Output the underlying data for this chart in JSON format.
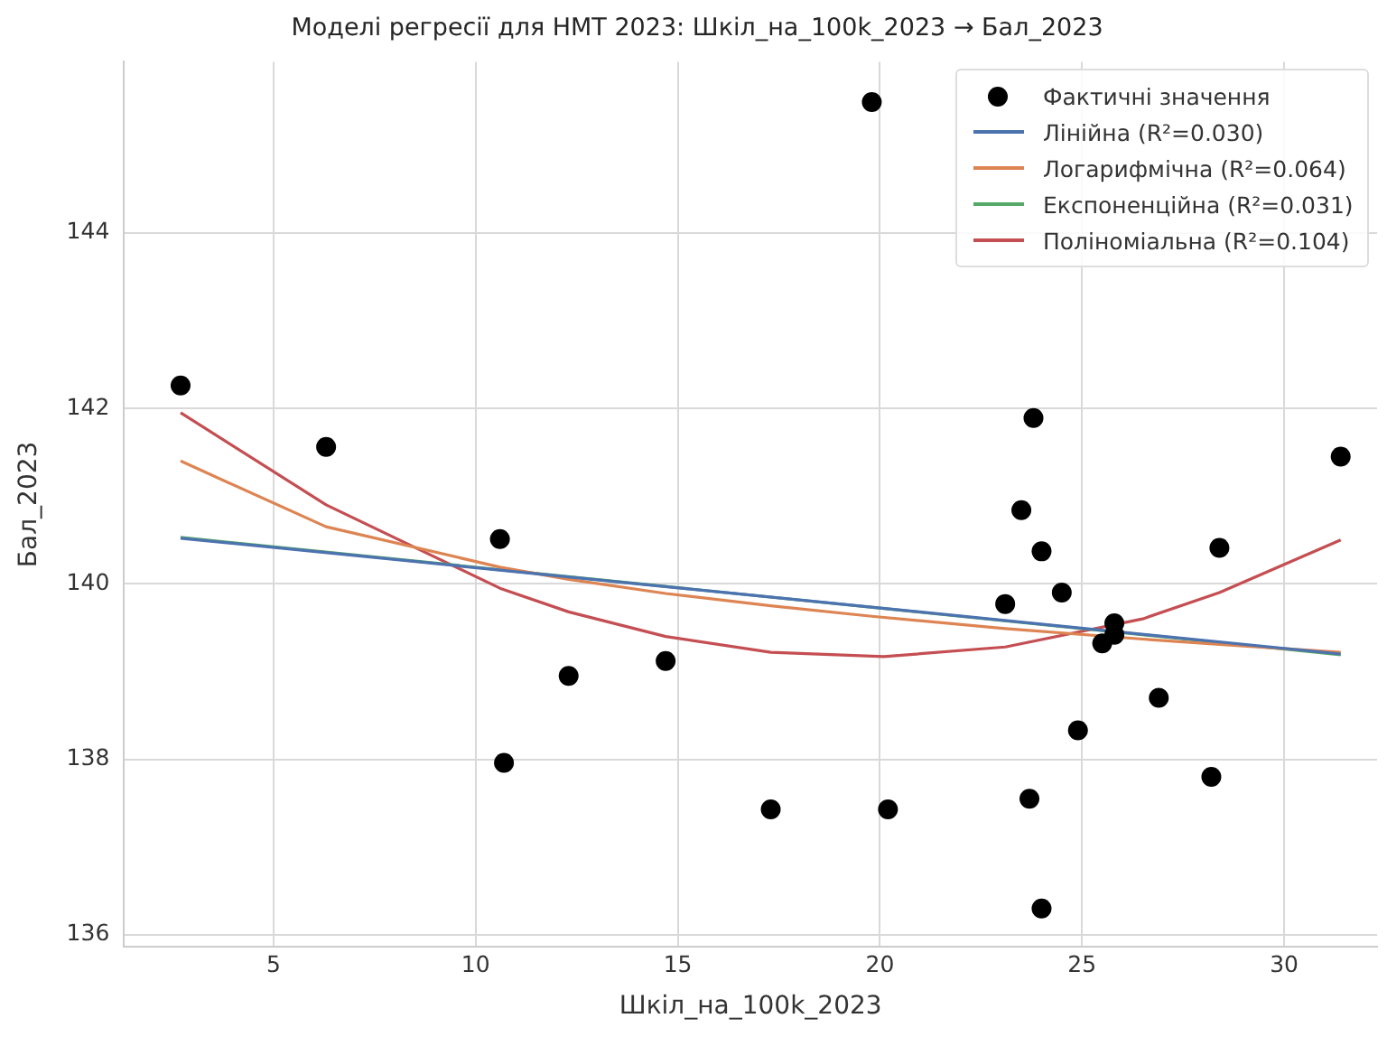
{
  "chart_data": {
    "type": "scatter",
    "title": "Моделі регресії для НМТ 2023: Шкіл_на_100k_2023 → Бал_2023",
    "xlabel": "Шкіл_на_100k_2023",
    "ylabel": "Бал_2023",
    "xlim": [
      1.3,
      32.3
    ],
    "xticks": [
      5,
      10,
      15,
      20,
      25,
      30
    ],
    "ylim": [
      135.86,
      145.95
    ],
    "yticks": [
      136,
      138,
      140,
      142,
      144
    ],
    "grid": true,
    "legend": "top right",
    "series": [
      {
        "name": "Фактичні значення",
        "type": "scatter",
        "marker": "circle",
        "color": "#000000",
        "x": [
          2.7,
          6.3,
          10.6,
          10.7,
          12.3,
          14.7,
          17.3,
          19.8,
          20.2,
          23.1,
          23.5,
          23.8,
          23.7,
          24.0,
          24.0,
          24.5,
          24.9,
          25.5,
          25.8,
          25.8,
          26.9,
          28.2,
          28.4,
          31.4
        ],
        "values": [
          142.26,
          141.56,
          140.51,
          137.96,
          138.95,
          139.12,
          137.43,
          145.49,
          137.43,
          139.77,
          140.84,
          141.89,
          137.55,
          140.37,
          136.3,
          139.9,
          138.33,
          139.32,
          139.55,
          139.42,
          138.7,
          137.8,
          140.41,
          141.45
        ]
      },
      {
        "name": "Лінійна (R²=0.030)",
        "type": "line",
        "marker": "none",
        "color": "#4c72b0",
        "x": [
          2.7,
          31.4
        ],
        "values": [
          140.52,
          139.2
        ]
      },
      {
        "name": "Логарифмічна (R²=0.064)",
        "type": "line",
        "marker": "none",
        "color": "#dd8452",
        "x": [
          2.7,
          6.3,
          10.6,
          12.3,
          14.7,
          17.3,
          19.8,
          23.1,
          26.5,
          28.4,
          31.4
        ],
        "values": [
          141.4,
          140.65,
          140.19,
          140.05,
          139.89,
          139.75,
          139.63,
          139.49,
          139.37,
          139.31,
          139.22
        ]
      },
      {
        "name": "Експоненційна (R²=0.031)",
        "type": "line",
        "marker": "none",
        "color": "#55a868",
        "x": [
          2.7,
          31.4
        ],
        "values": [
          140.53,
          139.19
        ]
      },
      {
        "name": "Поліноміальна (R²=0.104)",
        "type": "line",
        "marker": "none",
        "color": "#c44e52",
        "x": [
          2.7,
          6.3,
          10.6,
          12.3,
          14.7,
          17.3,
          20.1,
          23.1,
          26.5,
          28.4,
          31.4
        ],
        "values": [
          141.95,
          140.9,
          139.95,
          139.68,
          139.4,
          139.22,
          139.17,
          139.28,
          139.6,
          139.9,
          140.5
        ]
      }
    ]
  }
}
